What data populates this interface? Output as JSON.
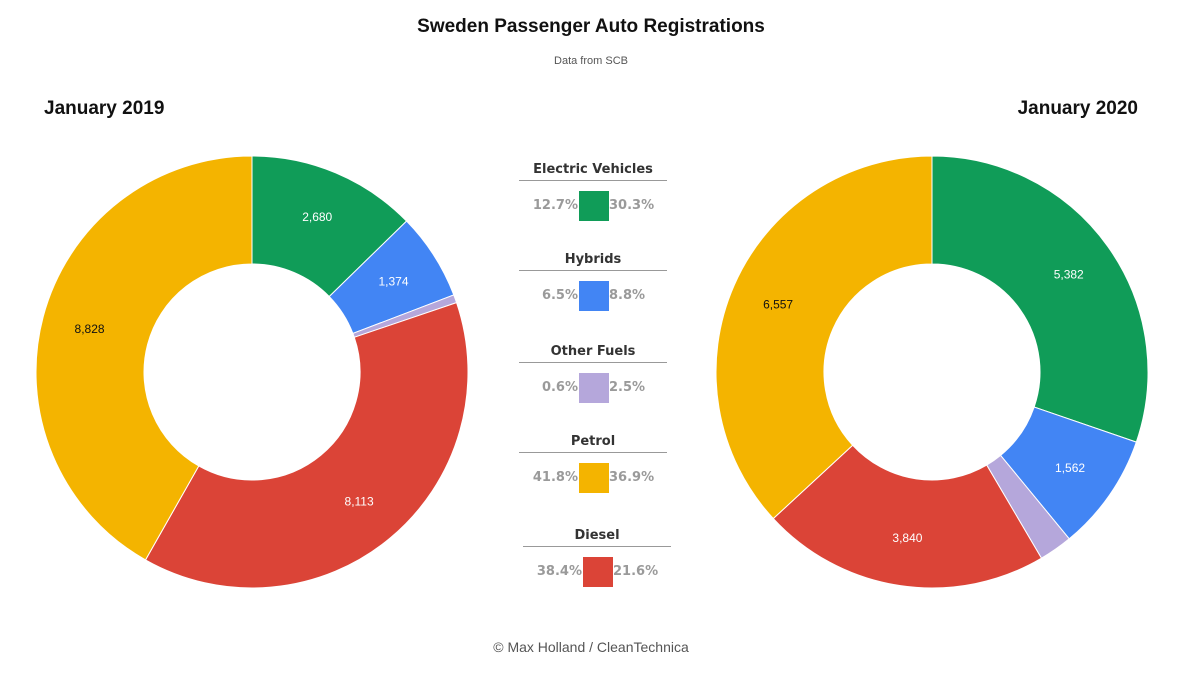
{
  "title": "Sweden Passenger Auto Registrations",
  "subtitle": "Data from SCB",
  "credit": "© Max Holland / CleanTechnica",
  "colors": {
    "electric": "#109c58",
    "hybrids": "#4285f4",
    "other": "#b5a7db",
    "petrol": "#f4b400",
    "diesel": "#db4437"
  },
  "legend": [
    {
      "name": "Electric Vehicles",
      "color_key": "electric",
      "pct_2019": "12.7%",
      "pct_2020": "30.3%"
    },
    {
      "name": "Hybrids",
      "color_key": "hybrids",
      "pct_2019": "6.5%",
      "pct_2020": "8.8%"
    },
    {
      "name": "Other Fuels",
      "color_key": "other",
      "pct_2019": "0.6%",
      "pct_2020": "2.5%"
    },
    {
      "name": "Petrol",
      "color_key": "petrol",
      "pct_2019": "41.8%",
      "pct_2020": "36.9%"
    },
    {
      "name": "Diesel",
      "color_key": "diesel",
      "pct_2019": "38.4%",
      "pct_2020": "21.6%"
    }
  ],
  "chart_data": [
    {
      "type": "pie",
      "title": "January 2019",
      "categories": [
        "Electric Vehicles",
        "Hybrids",
        "Other Fuels",
        "Diesel",
        "Petrol"
      ],
      "values": [
        2680,
        1374,
        127,
        8113,
        8828
      ],
      "labels": [
        "2,680",
        "1,374",
        "",
        "8,113",
        "8,828"
      ],
      "color_keys": [
        "electric",
        "hybrids",
        "other",
        "diesel",
        "petrol"
      ],
      "label_colors": [
        "#ffffff",
        "#ffffff",
        "#ffffff",
        "#ffffff",
        "#111111"
      ]
    },
    {
      "type": "pie",
      "title": "January 2020",
      "categories": [
        "Electric Vehicles",
        "Hybrids",
        "Other Fuels",
        "Diesel",
        "Petrol"
      ],
      "values": [
        5382,
        1562,
        444,
        3840,
        6557
      ],
      "labels": [
        "5,382",
        "1,562",
        "",
        "3,840",
        "6,557"
      ],
      "color_keys": [
        "electric",
        "hybrids",
        "other",
        "diesel",
        "petrol"
      ],
      "label_colors": [
        "#ffffff",
        "#ffffff",
        "#ffffff",
        "#ffffff",
        "#111111"
      ]
    }
  ]
}
